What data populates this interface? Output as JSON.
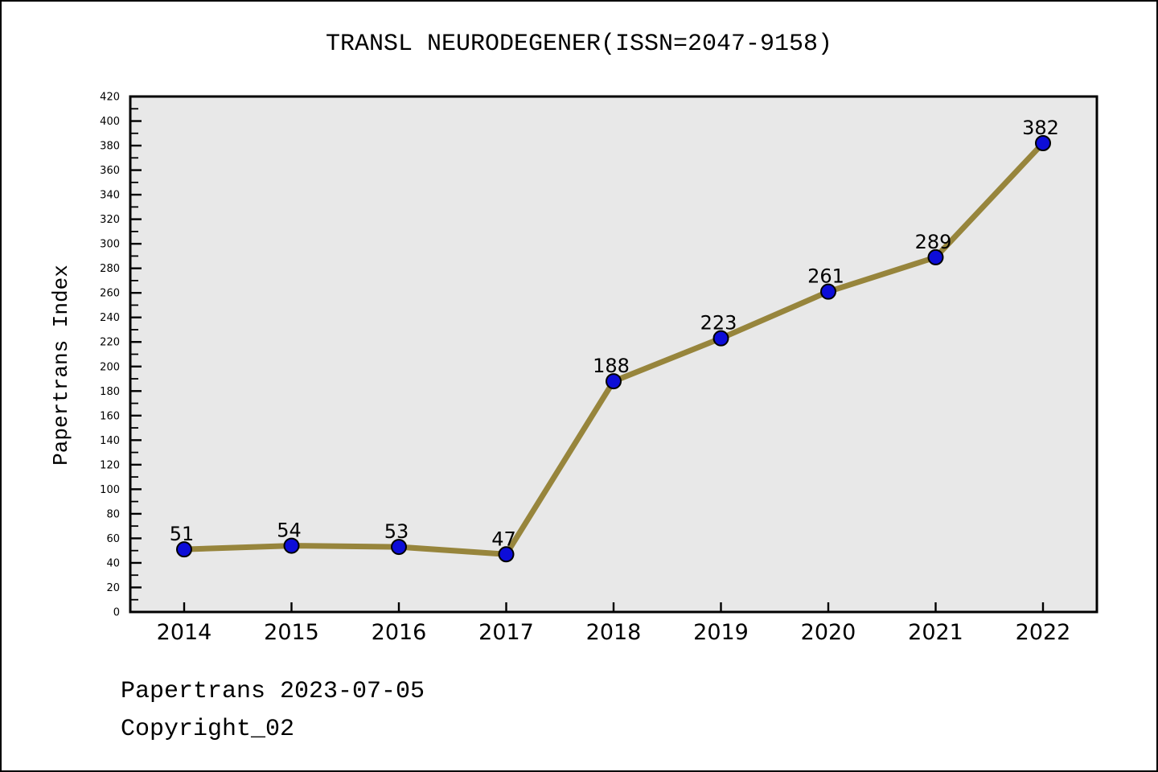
{
  "page": {
    "footer_line1": "Papertrans 2023-07-05",
    "footer_line2": "Copyright_02"
  },
  "chart_data": {
    "type": "line",
    "title": "TRANSL NEURODEGENER(ISSN=2047-9158)",
    "categories": [
      "2014",
      "2015",
      "2016",
      "2017",
      "2018",
      "2019",
      "2020",
      "2021",
      "2022"
    ],
    "values": [
      51,
      54,
      53,
      47,
      188,
      223,
      261,
      289,
      382
    ],
    "xlabel": "",
    "ylabel": "Papertrans Index",
    "ylim": [
      0,
      420
    ],
    "ytick_step": 20,
    "yminor_step": 10,
    "grid": false,
    "legend": null,
    "point_labels": [
      "51",
      "54",
      "53",
      "47",
      "188",
      "223",
      "261",
      "289",
      "382"
    ],
    "colors": {
      "line": "#97853c",
      "marker_fill": "#0d0dd8",
      "marker_edge": "#000000",
      "plot_bg": "#e8e8e8",
      "axis": "#000000",
      "text": "#000000",
      "page_bg": "#ffffff"
    }
  }
}
